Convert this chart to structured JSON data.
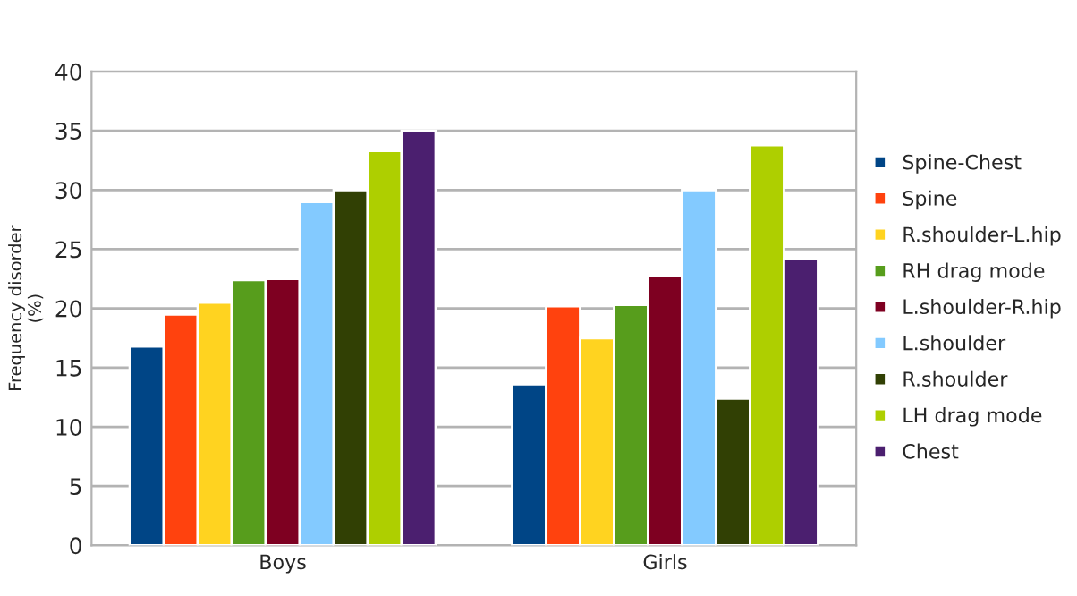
{
  "chart_data": {
    "type": "bar",
    "ylabel": "Frequency disorder\n(%)",
    "categories": [
      "Boys",
      "Girls"
    ],
    "series": [
      {
        "name": "Spine-Chest",
        "color": "#004586",
        "values": [
          16.8,
          13.6
        ]
      },
      {
        "name": "Spine",
        "color": "#ff420e",
        "values": [
          19.5,
          20.2
        ]
      },
      {
        "name": "R.shoulder-L.hip",
        "color": "#ffd320",
        "values": [
          20.5,
          17.5
        ]
      },
      {
        "name": "RH drag mode",
        "color": "#579d1c",
        "values": [
          22.4,
          20.3
        ]
      },
      {
        "name": "L.shoulder-R.hip",
        "color": "#7e0021",
        "values": [
          22.5,
          22.8
        ]
      },
      {
        "name": "L.shoulder",
        "color": "#83caff",
        "values": [
          29.0,
          30.0
        ]
      },
      {
        "name": "R.shoulder",
        "color": "#314004",
        "values": [
          30.0,
          12.4
        ]
      },
      {
        "name": "LH drag mode",
        "color": "#aecf00",
        "values": [
          33.3,
          33.8
        ]
      },
      {
        "name": "Chest",
        "color": "#4b1f6f",
        "values": [
          35.0,
          24.2
        ]
      }
    ],
    "ylim": [
      0,
      40
    ],
    "yticks": [
      0,
      5,
      10,
      15,
      20,
      25,
      30,
      35,
      40
    ],
    "grid": "y",
    "legend": "right"
  }
}
